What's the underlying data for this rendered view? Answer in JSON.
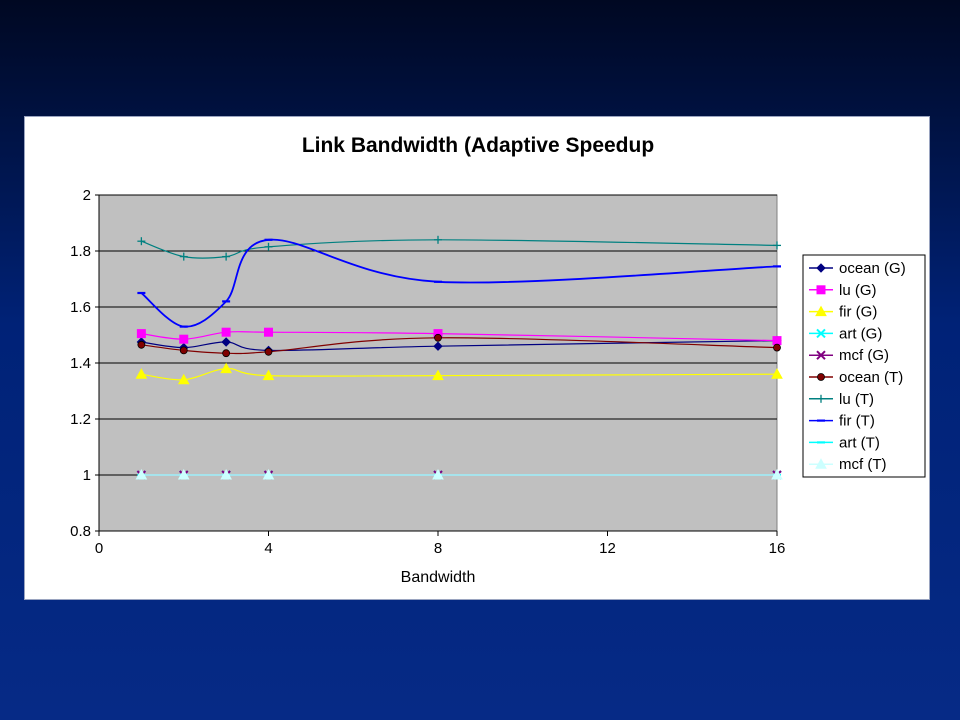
{
  "slide": {
    "background_colors": [
      "#000822",
      "#002277",
      "#062a86"
    ]
  },
  "chart_data": {
    "type": "line",
    "title": "Link Bandwidth (Adaptive Speedup",
    "xlabel": "Bandwidth",
    "ylabel": "",
    "xlim": [
      0,
      16
    ],
    "ylim": [
      0.8,
      2
    ],
    "xticks": [
      "0",
      "4",
      "8",
      "12",
      "16"
    ],
    "yticks": [
      "0.8",
      "1",
      "1.2",
      "1.4",
      "1.6",
      "1.8",
      "2"
    ],
    "grid": "horizontal",
    "plot_background": "#c0c0c0",
    "legend_position": "right",
    "smoothed": true,
    "series": [
      {
        "name": "ocean (G)",
        "color": "#000080",
        "marker": "diamond",
        "x": [
          1,
          2,
          3,
          4,
          8,
          16
        ],
        "y": [
          1.475,
          1.455,
          1.475,
          1.445,
          1.46,
          1.48
        ]
      },
      {
        "name": "lu (G)",
        "color": "#ff00ff",
        "marker": "square",
        "x": [
          1,
          2,
          3,
          4,
          8,
          16
        ],
        "y": [
          1.505,
          1.485,
          1.51,
          1.51,
          1.505,
          1.48
        ]
      },
      {
        "name": "fir (G)",
        "color": "#ffff00",
        "marker": "triangle",
        "x": [
          1,
          2,
          3,
          4,
          8,
          16
        ],
        "y": [
          1.36,
          1.34,
          1.38,
          1.355,
          1.355,
          1.36
        ]
      },
      {
        "name": "art (G)",
        "color": "#00ffff",
        "marker": "x",
        "x": [
          1,
          2,
          3,
          4,
          8,
          16
        ],
        "y": [
          1,
          1,
          1,
          1,
          1,
          1
        ]
      },
      {
        "name": "mcf (G)",
        "color": "#800080",
        "marker": "x",
        "x": [
          1,
          2,
          3,
          4,
          8,
          16
        ],
        "y": [
          1,
          1,
          1,
          1,
          1,
          1
        ]
      },
      {
        "name": "ocean (T)",
        "color": "#800000",
        "marker": "circle",
        "x": [
          1,
          2,
          3,
          4,
          8,
          16
        ],
        "y": [
          1.465,
          1.445,
          1.435,
          1.44,
          1.49,
          1.455
        ]
      },
      {
        "name": "lu (T)",
        "color": "#008080",
        "marker": "plus",
        "x": [
          1,
          2,
          3,
          4,
          8,
          16
        ],
        "y": [
          1.835,
          1.78,
          1.78,
          1.815,
          1.84,
          1.82
        ]
      },
      {
        "name": "fir (T)",
        "color": "#0000ff",
        "marker": "dash",
        "x": [
          1,
          2,
          3,
          4,
          8,
          16
        ],
        "y": [
          1.65,
          1.53,
          1.62,
          1.84,
          1.69,
          1.745
        ]
      },
      {
        "name": "art (T)",
        "color": "#00ffff",
        "marker": "dash",
        "x": [
          1,
          2,
          3,
          4,
          8,
          16
        ],
        "y": [
          1,
          1,
          1,
          1,
          1,
          1
        ]
      },
      {
        "name": "mcf (T)",
        "color": "#ccffff",
        "marker": "triangle",
        "x": [
          1,
          2,
          3,
          4,
          8,
          16
        ],
        "y": [
          1,
          1,
          1,
          1,
          1,
          1
        ]
      }
    ]
  }
}
